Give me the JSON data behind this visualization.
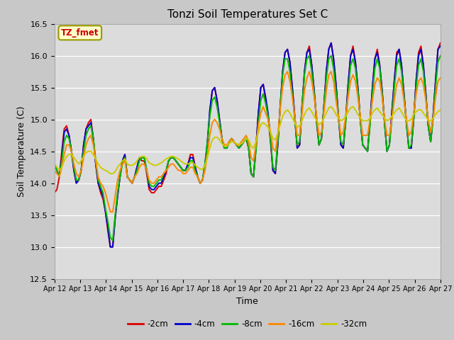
{
  "title": "Tonzi Soil Temperatures Set C",
  "xlabel": "Time",
  "ylabel": "Soil Temperature (C)",
  "ylim": [
    12.5,
    16.5
  ],
  "plot_bg_color": "#dcdcdc",
  "fig_bg_color": "#c8c8c8",
  "annotation_text": "TZ_fmet",
  "annotation_bg": "#ffffcc",
  "annotation_border": "#999900",
  "legend_entries": [
    "-2cm",
    "-4cm",
    "-8cm",
    "-16cm",
    "-32cm"
  ],
  "line_colors": [
    "#dd0000",
    "#0000cc",
    "#00bb00",
    "#ff8800",
    "#cccc00"
  ],
  "xtick_labels": [
    "Apr 12",
    "Apr 13",
    "Apr 14",
    "Apr 15",
    "Apr 16",
    "Apr 17",
    "Apr 18",
    "Apr 19",
    "Apr 20",
    "Apr 21",
    "Apr 22",
    "Apr 23",
    "Apr 24",
    "Apr 25",
    "Apr 26",
    "Apr 27"
  ],
  "ytick_values": [
    12.5,
    13.0,
    13.5,
    14.0,
    14.5,
    15.0,
    15.5,
    16.0,
    16.5
  ],
  "n_days": 16,
  "series": {
    "neg2cm": [
      13.85,
      13.9,
      14.1,
      14.5,
      14.85,
      14.9,
      14.75,
      14.5,
      14.2,
      14.0,
      14.05,
      14.2,
      14.6,
      14.85,
      14.95,
      15.0,
      14.7,
      14.3,
      14.0,
      13.85,
      13.75,
      13.55,
      13.25,
      13.0,
      13.0,
      13.45,
      13.8,
      14.1,
      14.35,
      14.45,
      14.1,
      14.05,
      14.0,
      14.1,
      14.25,
      14.4,
      14.35,
      14.35,
      14.15,
      13.9,
      13.85,
      13.85,
      13.9,
      13.95,
      13.95,
      14.05,
      14.15,
      14.35,
      14.4,
      14.4,
      14.35,
      14.3,
      14.25,
      14.2,
      14.2,
      14.3,
      14.45,
      14.45,
      14.25,
      14.1,
      14.0,
      14.05,
      14.25,
      14.6,
      15.1,
      15.45,
      15.5,
      15.3,
      15.0,
      14.7,
      14.55,
      14.55,
      14.65,
      14.7,
      14.65,
      14.6,
      14.55,
      14.6,
      14.65,
      14.7,
      14.55,
      14.15,
      14.1,
      14.55,
      15.1,
      15.5,
      15.55,
      15.3,
      15.05,
      14.65,
      14.2,
      14.15,
      14.6,
      15.2,
      15.75,
      16.05,
      16.1,
      15.9,
      15.5,
      15.05,
      14.55,
      14.6,
      15.2,
      15.75,
      16.05,
      16.15,
      15.85,
      15.45,
      14.95,
      14.6,
      14.7,
      15.2,
      15.75,
      16.1,
      16.2,
      15.95,
      15.55,
      15.05,
      14.6,
      14.55,
      15.0,
      15.55,
      16.0,
      16.15,
      15.9,
      15.5,
      15.0,
      14.6,
      14.55,
      14.5,
      14.95,
      15.5,
      15.95,
      16.1,
      15.85,
      15.45,
      14.95,
      14.5,
      14.6,
      15.1,
      15.6,
      16.05,
      16.1,
      15.85,
      15.4,
      14.95,
      14.55,
      14.55,
      15.0,
      15.6,
      16.05,
      16.15,
      15.85,
      15.4,
      14.9,
      14.65,
      15.05,
      15.6,
      16.1,
      16.2
    ],
    "neg4cm": [
      14.3,
      14.2,
      14.1,
      14.4,
      14.8,
      14.85,
      14.75,
      14.5,
      14.2,
      14.0,
      14.05,
      14.2,
      14.6,
      14.85,
      14.9,
      14.95,
      14.7,
      14.3,
      14.0,
      13.9,
      13.8,
      13.55,
      13.3,
      13.0,
      13.0,
      13.45,
      13.8,
      14.1,
      14.35,
      14.45,
      14.1,
      14.05,
      14.0,
      14.1,
      14.25,
      14.4,
      14.4,
      14.4,
      14.2,
      13.95,
      13.9,
      13.9,
      13.95,
      14.0,
      14.0,
      14.1,
      14.2,
      14.35,
      14.4,
      14.4,
      14.35,
      14.3,
      14.25,
      14.2,
      14.2,
      14.3,
      14.4,
      14.4,
      14.25,
      14.1,
      14.0,
      14.05,
      14.3,
      14.65,
      15.15,
      15.45,
      15.5,
      15.3,
      15.0,
      14.7,
      14.55,
      14.55,
      14.65,
      14.7,
      14.65,
      14.6,
      14.55,
      14.6,
      14.65,
      14.7,
      14.55,
      14.15,
      14.1,
      14.55,
      15.1,
      15.5,
      15.55,
      15.35,
      15.1,
      14.7,
      14.2,
      14.15,
      14.6,
      15.2,
      15.75,
      16.05,
      16.1,
      15.9,
      15.5,
      15.05,
      14.55,
      14.6,
      15.2,
      15.75,
      16.05,
      16.1,
      15.85,
      15.45,
      15.0,
      14.6,
      14.7,
      15.2,
      15.75,
      16.1,
      16.2,
      15.95,
      15.55,
      15.05,
      14.6,
      14.55,
      15.0,
      15.55,
      16.0,
      16.1,
      15.9,
      15.5,
      15.0,
      14.6,
      14.55,
      14.5,
      14.95,
      15.5,
      15.95,
      16.05,
      15.85,
      15.45,
      14.95,
      14.5,
      14.6,
      15.1,
      15.6,
      16.0,
      16.1,
      15.85,
      15.4,
      14.95,
      14.55,
      14.55,
      15.0,
      15.6,
      16.0,
      16.1,
      15.85,
      15.4,
      14.9,
      14.65,
      15.05,
      15.6,
      16.1,
      16.15
    ],
    "neg8cm": [
      14.3,
      14.2,
      14.1,
      14.35,
      14.65,
      14.75,
      14.7,
      14.5,
      14.25,
      14.05,
      14.05,
      14.2,
      14.5,
      14.75,
      14.85,
      14.9,
      14.7,
      14.35,
      14.05,
      13.95,
      13.85,
      13.6,
      13.4,
      13.15,
      13.1,
      13.5,
      13.85,
      14.1,
      14.3,
      14.4,
      14.1,
      14.05,
      14.0,
      14.1,
      14.2,
      14.35,
      14.4,
      14.4,
      14.2,
      14.0,
      13.95,
      13.95,
      14.0,
      14.05,
      14.05,
      14.15,
      14.2,
      14.35,
      14.4,
      14.4,
      14.35,
      14.3,
      14.25,
      14.2,
      14.2,
      14.25,
      14.35,
      14.35,
      14.2,
      14.1,
      14.0,
      14.05,
      14.3,
      14.65,
      15.05,
      15.3,
      15.35,
      15.2,
      14.95,
      14.7,
      14.55,
      14.55,
      14.65,
      14.7,
      14.65,
      14.6,
      14.55,
      14.6,
      14.65,
      14.7,
      14.55,
      14.15,
      14.1,
      14.5,
      14.95,
      15.3,
      15.4,
      15.25,
      15.05,
      14.7,
      14.25,
      14.2,
      14.65,
      15.2,
      15.7,
      15.95,
      15.95,
      15.75,
      15.4,
      15.0,
      14.6,
      14.65,
      15.2,
      15.7,
      15.95,
      16.0,
      15.75,
      15.4,
      15.0,
      14.6,
      14.7,
      15.2,
      15.65,
      15.95,
      16.0,
      15.8,
      15.45,
      15.05,
      14.65,
      14.6,
      14.95,
      15.45,
      15.85,
      15.95,
      15.8,
      15.45,
      15.0,
      14.6,
      14.55,
      14.5,
      14.9,
      15.4,
      15.8,
      15.95,
      15.8,
      15.4,
      14.95,
      14.5,
      14.6,
      15.0,
      15.5,
      15.85,
      15.95,
      15.75,
      15.35,
      14.95,
      14.55,
      14.6,
      15.0,
      15.5,
      15.85,
      15.95,
      15.75,
      15.35,
      14.9,
      14.65,
      15.0,
      15.5,
      15.9,
      16.0
    ],
    "neg16cm": [
      14.2,
      14.15,
      14.1,
      14.25,
      14.45,
      14.6,
      14.6,
      14.5,
      14.3,
      14.15,
      14.1,
      14.2,
      14.4,
      14.6,
      14.7,
      14.75,
      14.6,
      14.35,
      14.1,
      14.0,
      13.95,
      13.85,
      13.7,
      13.55,
      13.55,
      13.8,
      14.05,
      14.2,
      14.3,
      14.35,
      14.1,
      14.05,
      14.0,
      14.1,
      14.15,
      14.25,
      14.3,
      14.3,
      14.2,
      14.05,
      14.0,
      14.0,
      14.05,
      14.1,
      14.1,
      14.15,
      14.2,
      14.25,
      14.3,
      14.3,
      14.25,
      14.2,
      14.2,
      14.15,
      14.15,
      14.2,
      14.25,
      14.25,
      14.15,
      14.1,
      14.0,
      14.05,
      14.2,
      14.45,
      14.75,
      14.95,
      15.0,
      14.95,
      14.85,
      14.7,
      14.6,
      14.6,
      14.65,
      14.7,
      14.65,
      14.6,
      14.6,
      14.65,
      14.7,
      14.75,
      14.65,
      14.4,
      14.35,
      14.6,
      14.9,
      15.1,
      15.2,
      15.1,
      15.0,
      14.8,
      14.55,
      14.5,
      14.75,
      15.15,
      15.5,
      15.7,
      15.75,
      15.6,
      15.35,
      15.05,
      14.75,
      14.75,
      15.1,
      15.45,
      15.65,
      15.75,
      15.6,
      15.35,
      15.05,
      14.75,
      14.8,
      15.1,
      15.45,
      15.7,
      15.75,
      15.6,
      15.3,
      15.05,
      14.75,
      14.8,
      15.05,
      15.35,
      15.6,
      15.7,
      15.6,
      15.35,
      15.05,
      14.75,
      14.75,
      14.75,
      15.0,
      15.3,
      15.55,
      15.65,
      15.6,
      15.35,
      15.0,
      14.75,
      14.75,
      15.0,
      15.3,
      15.55,
      15.65,
      15.55,
      15.3,
      15.0,
      14.75,
      14.8,
      15.1,
      15.4,
      15.6,
      15.65,
      15.55,
      15.3,
      15.0,
      14.8,
      15.0,
      15.35,
      15.6,
      15.65
    ],
    "neg32cm": [
      14.3,
      14.25,
      14.2,
      14.25,
      14.35,
      14.42,
      14.45,
      14.45,
      14.4,
      14.35,
      14.3,
      14.35,
      14.42,
      14.48,
      14.5,
      14.5,
      14.45,
      14.38,
      14.3,
      14.25,
      14.22,
      14.2,
      14.18,
      14.15,
      14.15,
      14.18,
      14.25,
      14.3,
      14.35,
      14.38,
      14.3,
      14.28,
      14.28,
      14.3,
      14.35,
      14.4,
      14.42,
      14.42,
      14.38,
      14.32,
      14.3,
      14.28,
      14.28,
      14.3,
      14.32,
      14.35,
      14.38,
      14.4,
      14.42,
      14.42,
      14.4,
      14.38,
      14.35,
      14.32,
      14.3,
      14.3,
      14.32,
      14.32,
      14.28,
      14.25,
      14.22,
      14.22,
      14.28,
      14.4,
      14.55,
      14.68,
      14.72,
      14.72,
      14.68,
      14.62,
      14.58,
      14.58,
      14.62,
      14.65,
      14.65,
      14.62,
      14.6,
      14.62,
      14.65,
      14.7,
      14.68,
      14.58,
      14.55,
      14.65,
      14.8,
      14.92,
      14.95,
      14.92,
      14.88,
      14.8,
      14.7,
      14.68,
      14.78,
      14.92,
      15.05,
      15.12,
      15.15,
      15.1,
      15.02,
      14.95,
      14.88,
      14.9,
      14.98,
      15.08,
      15.15,
      15.18,
      15.12,
      15.05,
      14.98,
      14.92,
      14.95,
      15.02,
      15.1,
      15.18,
      15.2,
      15.15,
      15.08,
      15.02,
      14.98,
      15.0,
      15.05,
      15.12,
      15.18,
      15.2,
      15.15,
      15.08,
      15.02,
      14.98,
      14.98,
      14.98,
      15.02,
      15.1,
      15.15,
      15.18,
      15.12,
      15.08,
      15.02,
      14.98,
      15.0,
      15.05,
      15.1,
      15.15,
      15.18,
      15.12,
      15.05,
      14.98,
      14.98,
      15.0,
      15.08,
      15.12,
      15.15,
      15.15,
      15.1,
      15.05,
      14.98,
      14.98,
      15.02,
      15.08,
      15.12,
      15.15
    ]
  }
}
